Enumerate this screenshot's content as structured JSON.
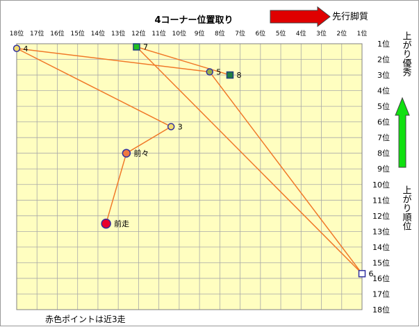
{
  "chart_data": {
    "type": "scatter",
    "title": "4コーナー位置取り",
    "x_axis": {
      "label": "4コーナー位置取り",
      "tick_labels": [
        "18位",
        "17位",
        "16位",
        "15位",
        "14位",
        "13位",
        "12位",
        "11位",
        "10位",
        "9位",
        "8位",
        "7位",
        "6位",
        "5位",
        "4位",
        "3位",
        "2位",
        "1位"
      ],
      "range": [
        18,
        1
      ]
    },
    "y_axis": {
      "label": "上がり順位",
      "tick_labels": [
        "1位",
        "2位",
        "3位",
        "4位",
        "5位",
        "6位",
        "7位",
        "8位",
        "9位",
        "10位",
        "11位",
        "12位",
        "13位",
        "14位",
        "15位",
        "16位",
        "17位",
        "18位"
      ],
      "range": [
        1,
        18
      ]
    },
    "points": [
      {
        "label": "前走",
        "x": 13.6,
        "y": 12.5,
        "fill": "#e8002a",
        "stroke": "#3030a0",
        "shape": "circle",
        "r": 6.5
      },
      {
        "label": "前々",
        "x": 12.6,
        "y": 8,
        "fill": "#f07840",
        "stroke": "#3030a0",
        "shape": "circle",
        "r": 5.5
      },
      {
        "label": "3",
        "x": 10.4,
        "y": 6.3,
        "fill": "#f2dc6e",
        "stroke": "#3030a0",
        "shape": "circle",
        "r": 4.5
      },
      {
        "label": "4",
        "x": 18,
        "y": 1.3,
        "fill": "#f2dc6e",
        "stroke": "#3030a0",
        "shape": "circle",
        "r": 4.5
      },
      {
        "label": "5",
        "x": 8.5,
        "y": 2.8,
        "fill": "#98b048",
        "stroke": "#3030a0",
        "shape": "circle",
        "r": 4.5
      },
      {
        "label": "6",
        "x": 1,
        "y": 15.7,
        "fill": "#ffffff",
        "stroke": "#3030a0",
        "shape": "square",
        "r": 4.5
      },
      {
        "label": "7",
        "x": 12.1,
        "y": 1.2,
        "fill": "#20c020",
        "stroke": "#204080",
        "shape": "square",
        "r": 4.5
      },
      {
        "label": "8",
        "x": 7.5,
        "y": 3,
        "fill": "#208040",
        "stroke": "#204080",
        "shape": "square",
        "r": 4.5
      }
    ],
    "lines": [
      [
        "前走",
        "前々"
      ],
      [
        "前々",
        "3"
      ],
      [
        "3",
        "4"
      ],
      [
        "4",
        "5"
      ],
      [
        "5",
        "6"
      ],
      [
        "6",
        "7"
      ],
      [
        "7",
        "8"
      ]
    ],
    "grid": true,
    "annotations": {
      "top_right": "先行脚質",
      "right_top": "上がり優秀",
      "right_mid": "上がり順位",
      "bottom_left": "赤色ポイントは近3走"
    },
    "colors": {
      "plot_bg": "#fffec0",
      "grid": "#a8a8a8",
      "line": "#f07828",
      "red_arrow": "#e00000",
      "green_arrow": "#10e010"
    }
  }
}
